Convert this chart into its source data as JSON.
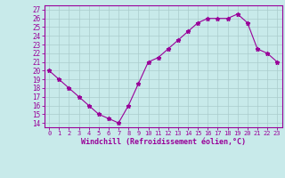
{
  "x": [
    0,
    1,
    2,
    3,
    4,
    5,
    6,
    7,
    8,
    9,
    10,
    11,
    12,
    13,
    14,
    15,
    16,
    17,
    18,
    19,
    20,
    21,
    22,
    23
  ],
  "y": [
    20,
    19,
    18,
    17,
    16,
    15,
    14.5,
    14,
    16,
    18.5,
    21,
    21.5,
    22.5,
    23.5,
    24.5,
    25.5,
    26,
    26,
    26,
    26.5,
    25.5,
    22.5,
    22,
    21
  ],
  "line_color": "#990099",
  "marker": "*",
  "bg_color": "#c8eaea",
  "grid_color": "#aacccc",
  "xlabel": "Windchill (Refroidissement éolien,°C)",
  "xlabel_color": "#990099",
  "ylabel_values": [
    14,
    15,
    16,
    17,
    18,
    19,
    20,
    21,
    22,
    23,
    24,
    25,
    26,
    27
  ],
  "ylim": [
    13.5,
    27.5
  ],
  "xlim": [
    -0.5,
    23.5
  ],
  "xtick_labels": [
    "0",
    "1",
    "2",
    "3",
    "4",
    "5",
    "6",
    "7",
    "8",
    "9",
    "10",
    "11",
    "12",
    "13",
    "14",
    "15",
    "16",
    "17",
    "18",
    "19",
    "20",
    "21",
    "22",
    "23"
  ],
  "tick_color": "#990099",
  "axis_color": "#990099",
  "figsize": [
    3.2,
    2.0
  ],
  "dpi": 100
}
